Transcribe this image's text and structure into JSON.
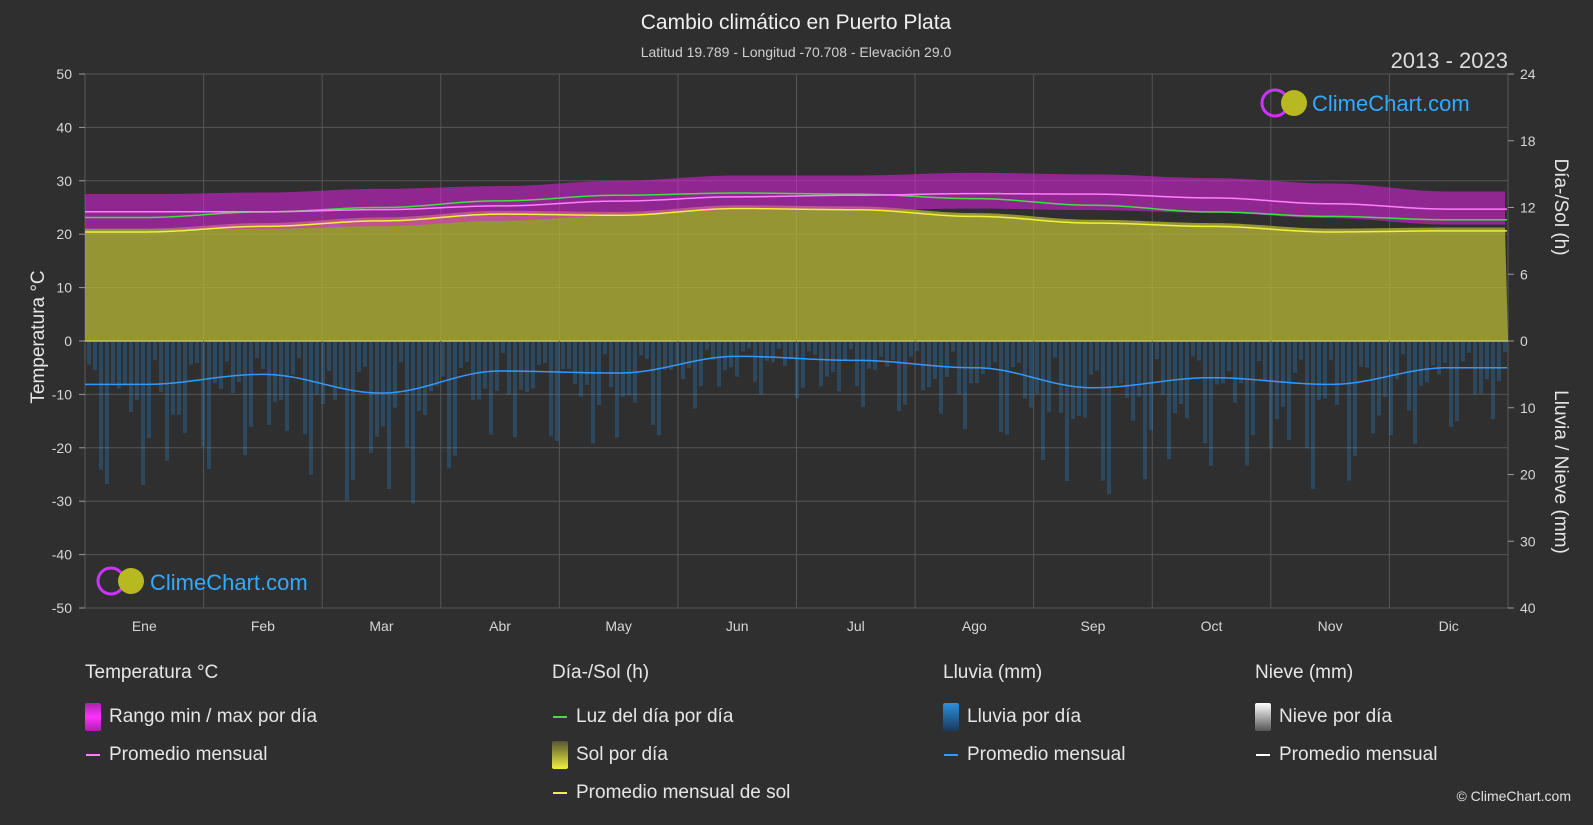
{
  "header": {
    "title": "Cambio climático en Puerto Plata",
    "subtitle": "Latitud 19.789 - Longitud -70.708 - Elevación 29.0",
    "years": "2013 - 2023"
  },
  "brand": {
    "text": "ClimeChart.com",
    "copyright": "© ClimeChart.com"
  },
  "axes": {
    "left_label": "Temperatura °C",
    "right_top_label": "Día-/Sol (h)",
    "right_bottom_label": "Lluvia / Nieve (mm)",
    "left_ticks": [
      "50",
      "40",
      "30",
      "20",
      "10",
      "0",
      "-10",
      "-20",
      "-30",
      "-40",
      "-50"
    ],
    "right_top_ticks": [
      "24",
      "18",
      "12",
      "6",
      "0"
    ],
    "right_bottom_ticks": [
      "10",
      "20",
      "30",
      "40"
    ]
  },
  "legend": {
    "temperature": {
      "title": "Temperatura °C",
      "range": "Rango min / max por día",
      "avg": "Promedio mensual"
    },
    "sun": {
      "title": "Día-/Sol (h)",
      "daylight": "Luz del día por día",
      "sun_day": "Sol por día",
      "sun_avg": "Promedio mensual de sol"
    },
    "rain": {
      "title": "Lluvia (mm)",
      "rain_day": "Lluvia por día",
      "avg": "Promedio mensual"
    },
    "snow": {
      "title": "Nieve (mm)",
      "snow_day": "Nieve por día",
      "avg": "Promedio mensual"
    }
  },
  "colors": {
    "background": "#2f2f2f",
    "temp_range": "#e020e0",
    "temp_avg": "#ff80ff",
    "daylight": "#44dd44",
    "sun_fill": "#bdbd35",
    "sun_avg": "#f0f040",
    "rain": "#2a8fe0",
    "rain_avg": "#3399ff",
    "snow": "#dddddd",
    "brand": "#33aaff"
  },
  "chart_data": {
    "type": "line",
    "categories": [
      "Ene",
      "Feb",
      "Mar",
      "Abr",
      "May",
      "Jun",
      "Jul",
      "Ago",
      "Sep",
      "Oct",
      "Nov",
      "Dic"
    ],
    "temp_ylim": [
      -50,
      50
    ],
    "sun_ylim": [
      0,
      24
    ],
    "rain_ylim": [
      0,
      40
    ],
    "series": [
      {
        "name": "Luz del día por día",
        "axis": "sun",
        "values": [
          11.1,
          11.6,
          12.0,
          12.6,
          13.1,
          13.3,
          13.2,
          12.8,
          12.2,
          11.6,
          11.2,
          10.9
        ]
      },
      {
        "name": "Promedio mensual de sol",
        "axis": "sun",
        "values": [
          9.8,
          10.3,
          10.8,
          11.4,
          11.3,
          11.9,
          11.8,
          11.2,
          10.6,
          10.3,
          9.8,
          9.9
        ]
      },
      {
        "name": "Promedio mensual",
        "axis": "temp",
        "values": [
          24.2,
          24.2,
          24.6,
          25.3,
          26.2,
          27.0,
          27.3,
          27.6,
          27.5,
          26.8,
          25.7,
          24.7
        ]
      },
      {
        "name": "Rango min / max por día",
        "axis": "temp",
        "min": [
          21.0,
          21.0,
          21.5,
          22.5,
          23.5,
          24.5,
          24.5,
          24.8,
          24.5,
          24.0,
          23.0,
          21.8
        ],
        "max": [
          27.5,
          27.8,
          28.5,
          29.0,
          30.0,
          31.0,
          31.0,
          31.5,
          31.2,
          30.5,
          29.5,
          28.0
        ]
      },
      {
        "name": "Promedio mensual",
        "axis": "rain",
        "values": [
          6.5,
          5.0,
          7.8,
          4.5,
          4.8,
          2.3,
          2.9,
          4.0,
          7.0,
          5.5,
          6.5,
          4.0
        ]
      }
    ]
  }
}
